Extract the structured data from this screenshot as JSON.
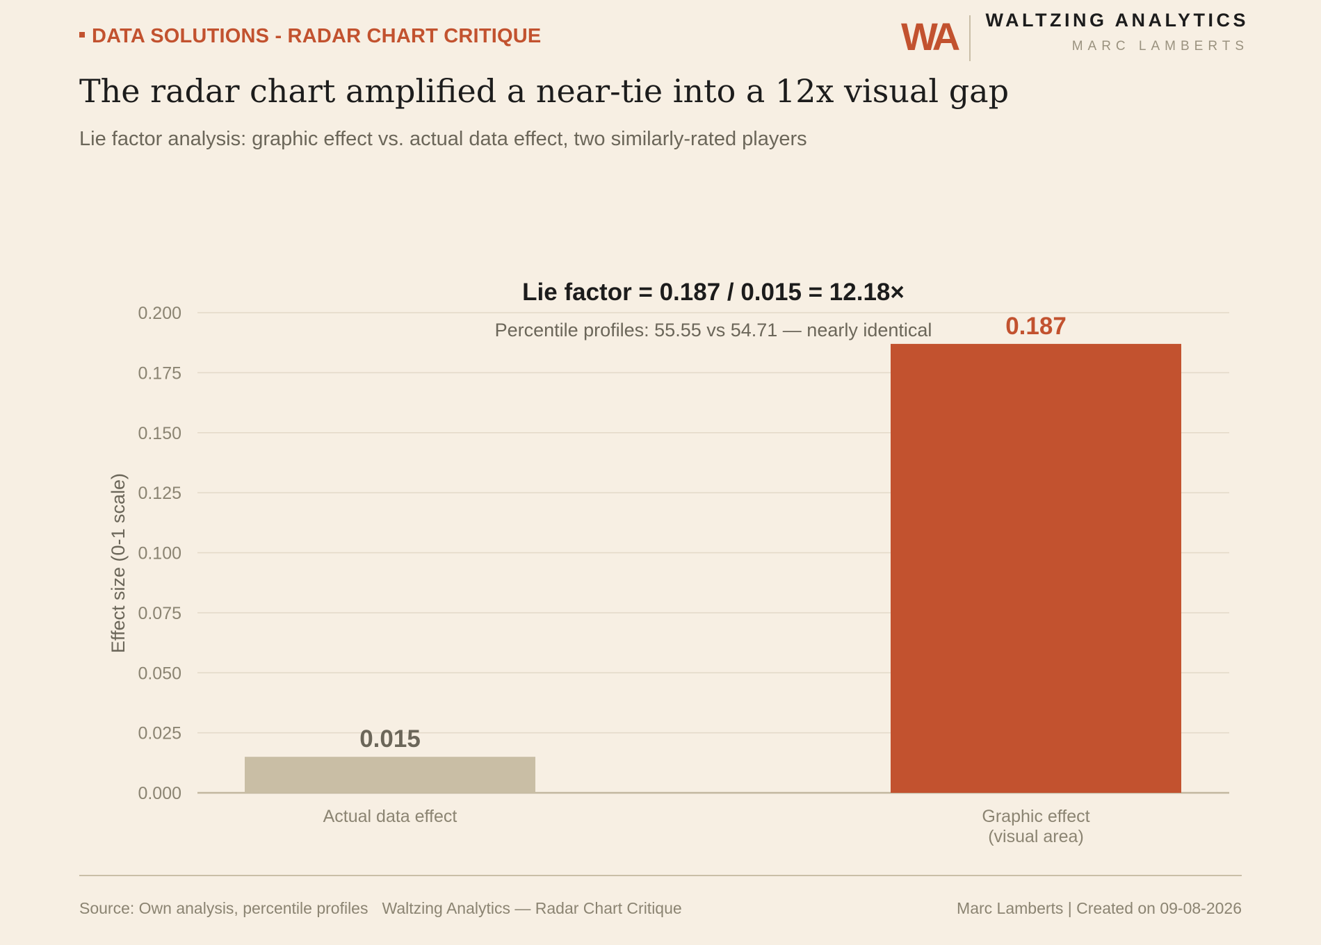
{
  "header": {
    "kicker": "DATA SOLUTIONS - RADAR CHART CRITIQUE",
    "brand_logo": "WA",
    "brand_name": "WALTZING ANALYTICS",
    "brand_author": "MARC LAMBERTS",
    "title": "The radar chart amplified a near-tie into a 12x visual gap",
    "subtitle": "Lie factor analysis: graphic effect vs. actual data effect, two similarly-rated players"
  },
  "chart_data": {
    "type": "bar",
    "categories": [
      "Actual data effect",
      "Graphic effect\n(visual area)"
    ],
    "values": [
      0.015,
      0.187
    ],
    "value_labels": [
      "0.015",
      "0.187"
    ],
    "bar_colors": [
      "#c9bea5",
      "#c2522f"
    ],
    "label_colors": [
      "#6b6659",
      "#c2522f"
    ],
    "ylabel": "Effect size (0-1 scale)",
    "ylim": [
      0,
      0.2
    ],
    "yticks": [
      "0.000",
      "0.025",
      "0.050",
      "0.075",
      "0.100",
      "0.125",
      "0.150",
      "0.175",
      "0.200"
    ],
    "annotation_title": "Lie factor = 0.187 / 0.015 = 12.18×",
    "annotation_subtitle": "Percentile profiles: 55.55 vs 54.71 — nearly identical",
    "grid": true
  },
  "footer": {
    "source": "Source: Own analysis, percentile profiles",
    "publication": "Waltzing Analytics — Radar Chart Critique",
    "credit": "Marc Lamberts | Created on 09-08-2026"
  },
  "colors": {
    "background": "#f7efe3",
    "accent": "#c2522f",
    "muted_bar": "#c9bea5",
    "grid": "#e3d9c8",
    "axis_text": "#8b8472"
  }
}
